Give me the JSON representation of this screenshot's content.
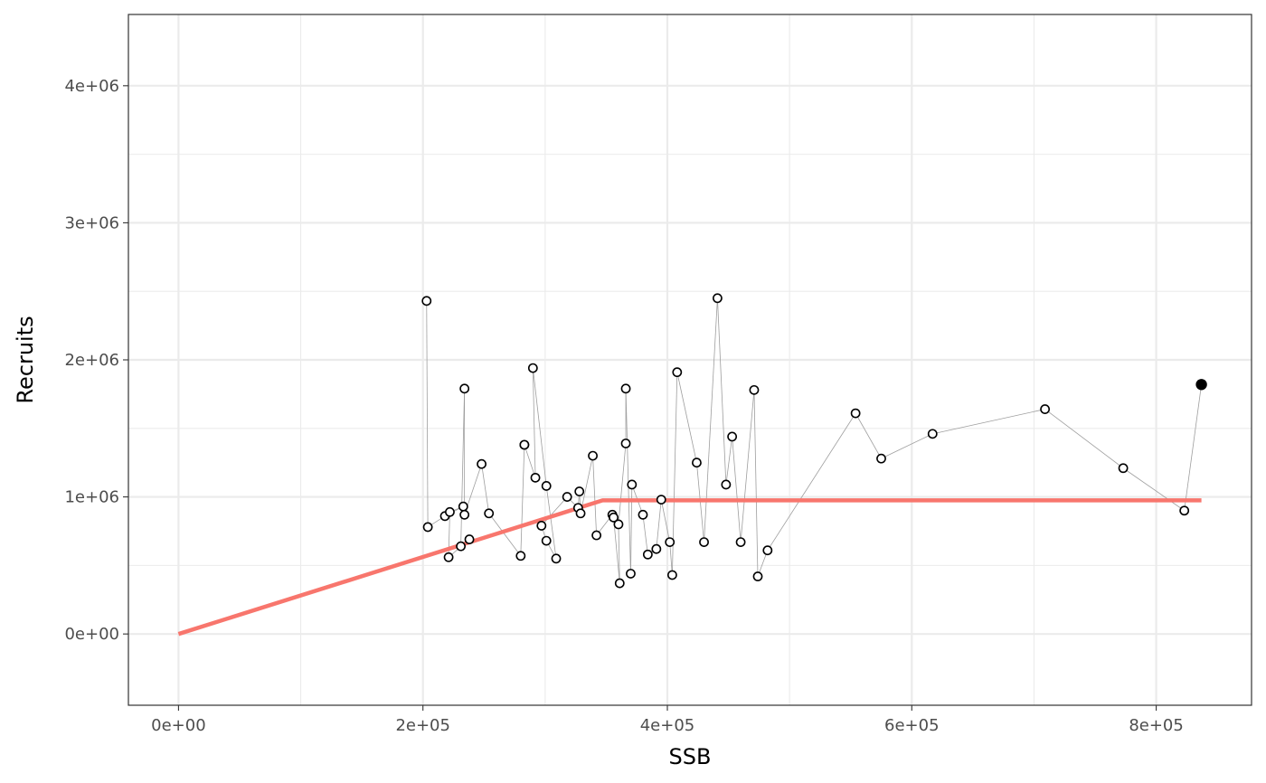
{
  "chart_data": {
    "type": "scatter",
    "title": "",
    "xlabel": "SSB",
    "ylabel": "Recruits",
    "xlim": [
      -41000,
      878000
    ],
    "ylim": [
      -520000,
      4520000
    ],
    "x_ticks": [
      0,
      200000,
      400000,
      600000,
      800000
    ],
    "x_tick_labels": [
      "0e+00",
      "2e+05",
      "4e+05",
      "6e+05",
      "8e+05"
    ],
    "y_ticks": [
      0,
      1000000,
      2000000,
      3000000,
      4000000
    ],
    "y_tick_labels": [
      "0e+00",
      "1e+06",
      "2e+06",
      "3e+06",
      "4e+06"
    ],
    "x_minor_ticks": [
      100000,
      300000,
      500000,
      700000
    ],
    "y_minor_ticks": [
      500000,
      1500000,
      2500000,
      3500000
    ],
    "grid": true,
    "legend": "none",
    "colors": {
      "model_line": "#f8766d",
      "path_line": "#9e9e9e",
      "points": "#000000",
      "grid": "#ebebeb",
      "panel_border": "#333333"
    },
    "series": [
      {
        "type": "scatter-path",
        "x": [
          203000,
          204000,
          218000,
          233000,
          222000,
          221000,
          238000,
          231000,
          234000,
          234000,
          248000,
          254000,
          280000,
          283000,
          283000,
          292000,
          290000,
          301000,
          309000,
          301000,
          297000,
          318000,
          327000,
          328000,
          329000,
          339000,
          342000,
          355000,
          356000,
          361000,
          360000,
          366000,
          366000,
          370000,
          371000,
          380000,
          384000,
          391000,
          395000,
          402000,
          404000,
          408000,
          424000,
          430000,
          441000,
          448000,
          453000,
          460000,
          471000,
          474000,
          482000,
          554000,
          575000,
          617000,
          709000,
          773000,
          823000,
          837000
        ],
        "y": [
          2430000,
          780000,
          860000,
          930000,
          890000,
          560000,
          690000,
          640000,
          1790000,
          870000,
          1240000,
          880000,
          570000,
          1380000,
          1380000,
          1140000,
          1940000,
          1080000,
          550000,
          680000,
          790000,
          1000000,
          920000,
          1040000,
          880000,
          1300000,
          720000,
          870000,
          850000,
          370000,
          800000,
          1390000,
          1790000,
          440000,
          1090000,
          870000,
          580000,
          620000,
          980000,
          670000,
          430000,
          1910000,
          1250000,
          670000,
          2450000,
          1090000,
          1440000,
          670000,
          1780000,
          420000,
          610000,
          1610000,
          1280000,
          1460000,
          1640000,
          1210000,
          900000,
          1820000
        ]
      },
      {
        "type": "line",
        "name": "",
        "x": [
          0,
          347000,
          837000
        ],
        "y": [
          0,
          975000,
          975000
        ]
      }
    ],
    "last_point": {
      "x": 837000,
      "y": 1820000
    }
  }
}
